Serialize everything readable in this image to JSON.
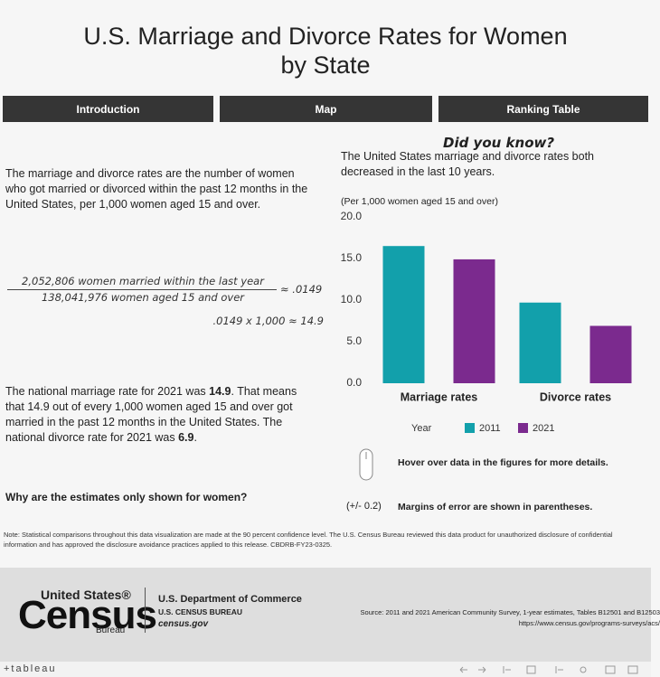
{
  "header": {
    "title_lines": [
      "U.S. Marriage and Divorce Rates for Women",
      "by State"
    ]
  },
  "tabs": [
    "Introduction",
    "Map",
    "Ranking Table"
  ],
  "intro": {
    "paragraph": "The marriage and divorce rates are the number of women who got married or divorced within the past 12 months in the United States, per 1,000 women aged 15 and over.",
    "formula": {
      "numerator": "2,052,806 women married within the last year",
      "denominator": "138,041,976 women aged 15 and over",
      "result": "≈ .0149",
      "second_line": ".0149 x 1,000 ≈ 14.9"
    },
    "national": [
      {
        "text": "The national marriage rate for 2021 was ",
        "bold": false
      },
      {
        "text": "14.9",
        "bold": true
      },
      {
        "text": ". That means that 14.9 out of every 1,000 women aged 15 and over got married in the past 12 months in the United States. The national divorce rate for 2021 was ",
        "bold": false
      },
      {
        "text": "6.9",
        "bold": true
      },
      {
        "text": ".",
        "bold": false
      }
    ],
    "question": "Why are the estimates only shown for women?"
  },
  "did_you_know": {
    "heading": "Did you know?",
    "text": "The United States marriage and divorce rates both decreased in the last 10 years.",
    "unit_note": "(Per 1,000 women aged 15 and over)"
  },
  "chart_data": {
    "type": "bar",
    "categories": [
      "Marriage rates",
      "Divorce rates"
    ],
    "series": [
      {
        "name": "2011",
        "color": "#12a0ab",
        "values": [
          16.5,
          9.7
        ]
      },
      {
        "name": "2021",
        "color": "#7b2a8e",
        "values": [
          14.9,
          6.9
        ]
      }
    ],
    "ylim": [
      0,
      20
    ],
    "yticks": [
      {
        "value": 0,
        "label": "0.0"
      },
      {
        "value": 5,
        "label": "5.0"
      },
      {
        "value": 10,
        "label": "10.0"
      },
      {
        "value": 15,
        "label": "15.0"
      },
      {
        "value": 20,
        "label": "20.0"
      }
    ],
    "legend_title": "Year",
    "grid": false
  },
  "hints": {
    "hover": "Hover over data in the figures for more details.",
    "moe_example": "(+/- 0.2)",
    "moe": "Margins of error are shown in parentheses."
  },
  "note": "Note: Statistical comparisons throughout this data visualization are made at the 90 percent confidence level. The U.S. Census Bureau reviewed this data product for unauthorized disclosure of confidential information and has approved the disclosure avoidance practices applied to this release. CBDRB-FY23-0325.",
  "footer": {
    "logo_top": "United States®",
    "logo_main": "Census",
    "logo_bottom": "Bureau",
    "department": "U.S. Department of Commerce",
    "bureau": "U.S. CENSUS BUREAU",
    "site": "census.gov",
    "source": "Source: 2011 and 2021 American Community Survey, 1-year estimates, Tables B12501 and B12503 https://www.census.gov/programs-surveys/acs/"
  },
  "toolbar": {
    "logo": "+tableau"
  }
}
